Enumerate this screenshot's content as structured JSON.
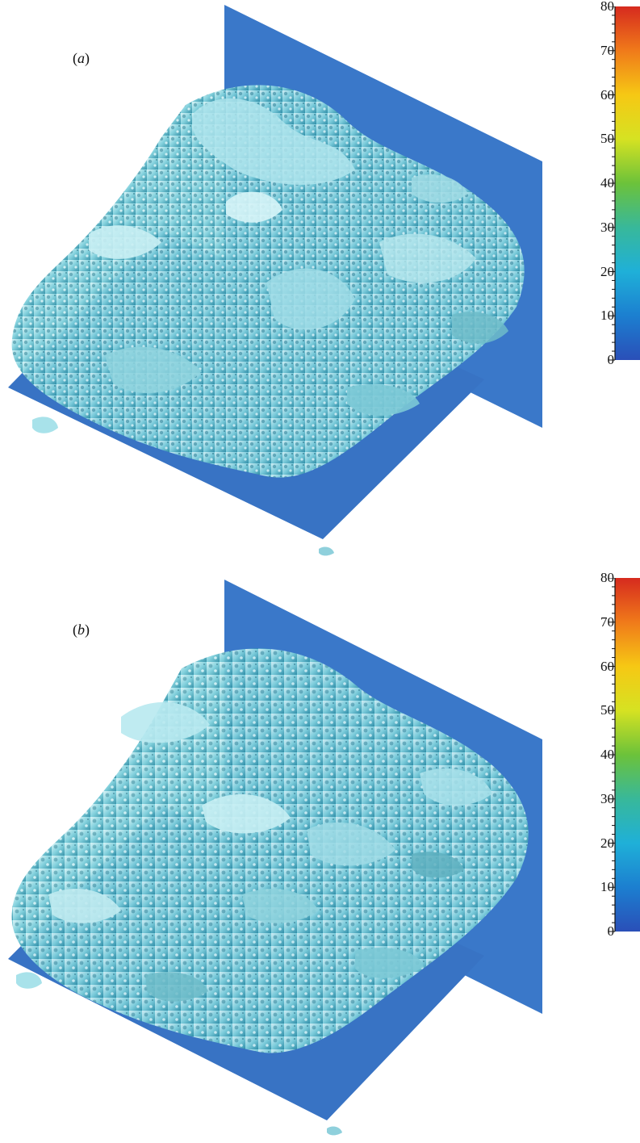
{
  "panels": [
    {
      "label": "a",
      "colorbar": {
        "ticks": [
          "80",
          "70",
          "60",
          "50",
          "40",
          "30",
          "20",
          "10",
          "0"
        ],
        "colors": [
          "#d62a1e",
          "#f07a1a",
          "#f6c814",
          "#d6e222",
          "#6cc23a",
          "#38b89a",
          "#1fb0d8",
          "#1c7fd0",
          "#2a4fb8"
        ]
      }
    },
    {
      "label": "b",
      "colorbar": {
        "ticks": [
          "80",
          "70",
          "60",
          "50",
          "40",
          "30",
          "20",
          "10",
          "0"
        ],
        "colors": [
          "#d62a1e",
          "#f07a1a",
          "#f6c814",
          "#d6e222",
          "#6cc23a",
          "#38b89a",
          "#1fb0d8",
          "#1c7fd0",
          "#2a4fb8"
        ]
      }
    }
  ],
  "colors": {
    "plane": "#3a78c9",
    "plane_dark": "#2f66b3",
    "vortex_light": "#bfeaf0",
    "vortex_mid": "#6fc8d6",
    "vortex_dark": "#2f8fa6"
  }
}
